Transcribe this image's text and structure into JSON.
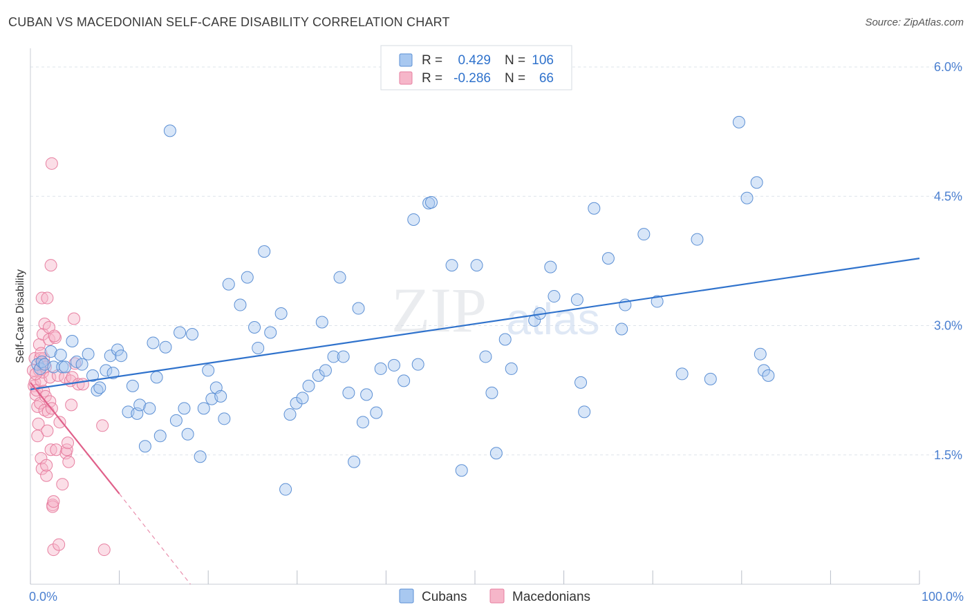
{
  "title": "CUBAN VS MACEDONIAN SELF-CARE DISABILITY CORRELATION CHART",
  "source": "Source: ZipAtlas.com",
  "watermark": {
    "main": "ZIP",
    "sub": "atlas"
  },
  "colors": {
    "cubans_fill": "#a8c8f0",
    "cubans_stroke": "#5b8fd4",
    "cubans_line": "#2f72cc",
    "macedonians_fill": "#f6b6c9",
    "macedonians_stroke": "#e77fa0",
    "macedonians_line": "#e0608a",
    "tick_label": "#4a7fd0",
    "grid": "#dde3ea"
  },
  "legend": {
    "rows": [
      {
        "r_label": "R =",
        "r_value": "0.429",
        "n_label": "N =",
        "n_value": "106"
      },
      {
        "r_label": "R =",
        "r_value": "-0.286",
        "n_label": "N =",
        "n_value": "66"
      }
    ]
  },
  "bottom_legend": {
    "cubans": "Cubans",
    "macedonians": "Macedonians"
  },
  "chart_data": {
    "type": "scatter",
    "ylabel": "Self-Care Disability",
    "xlabel": "",
    "x_tick_labels": [
      "0.0%",
      "100.0%"
    ],
    "y_tick_labels": [
      "1.5%",
      "3.0%",
      "4.5%",
      "6.0%"
    ],
    "y_ticks": [
      1.5,
      3.0,
      4.5,
      6.0
    ],
    "xlim": [
      0,
      100
    ],
    "ylim": [
      0,
      6.25
    ],
    "grid": true,
    "legend_position": "top-center",
    "series": [
      {
        "name": "Cubans",
        "trend": {
          "x0": 0,
          "y0": 2.26,
          "x1": 100,
          "y1": 3.78
        },
        "points": [
          [
            0.8,
            2.55
          ],
          [
            1.1,
            2.5
          ],
          [
            1.3,
            2.58
          ],
          [
            1.6,
            2.55
          ],
          [
            2.3,
            2.7
          ],
          [
            2.6,
            2.52
          ],
          [
            3.4,
            2.66
          ],
          [
            3.6,
            2.52
          ],
          [
            3.9,
            2.52
          ],
          [
            4.7,
            2.82
          ],
          [
            5.2,
            2.58
          ],
          [
            5.8,
            2.55
          ],
          [
            6.5,
            2.67
          ],
          [
            7.0,
            2.42
          ],
          [
            7.5,
            2.25
          ],
          [
            7.8,
            2.28
          ],
          [
            8.5,
            2.48
          ],
          [
            9.0,
            2.65
          ],
          [
            9.3,
            2.45
          ],
          [
            9.8,
            2.72
          ],
          [
            10.2,
            2.65
          ],
          [
            11.0,
            2.0
          ],
          [
            11.5,
            2.3
          ],
          [
            12.0,
            1.98
          ],
          [
            12.3,
            2.08
          ],
          [
            12.9,
            1.6
          ],
          [
            13.4,
            2.04
          ],
          [
            13.8,
            2.8
          ],
          [
            14.2,
            2.4
          ],
          [
            14.6,
            1.72
          ],
          [
            15.2,
            2.75
          ],
          [
            15.7,
            5.26
          ],
          [
            16.4,
            1.9
          ],
          [
            16.8,
            2.92
          ],
          [
            17.3,
            2.04
          ],
          [
            17.7,
            1.74
          ],
          [
            18.2,
            2.9
          ],
          [
            19.1,
            1.48
          ],
          [
            19.5,
            2.04
          ],
          [
            20.0,
            2.48
          ],
          [
            20.4,
            2.15
          ],
          [
            20.9,
            2.28
          ],
          [
            21.4,
            2.18
          ],
          [
            21.8,
            1.92
          ],
          [
            22.3,
            3.48
          ],
          [
            23.6,
            3.24
          ],
          [
            24.4,
            3.56
          ],
          [
            25.2,
            2.98
          ],
          [
            25.6,
            2.74
          ],
          [
            26.3,
            3.86
          ],
          [
            27.0,
            2.92
          ],
          [
            28.2,
            3.14
          ],
          [
            28.7,
            1.1
          ],
          [
            29.2,
            1.97
          ],
          [
            29.9,
            2.1
          ],
          [
            30.6,
            2.16
          ],
          [
            31.3,
            2.3
          ],
          [
            32.4,
            2.42
          ],
          [
            32.8,
            3.04
          ],
          [
            33.2,
            2.48
          ],
          [
            34.1,
            2.64
          ],
          [
            34.8,
            3.56
          ],
          [
            35.2,
            2.64
          ],
          [
            35.8,
            2.22
          ],
          [
            36.4,
            1.42
          ],
          [
            36.9,
            3.2
          ],
          [
            37.4,
            1.88
          ],
          [
            37.8,
            2.2
          ],
          [
            38.9,
            1.99
          ],
          [
            39.4,
            2.5
          ],
          [
            40.9,
            2.54
          ],
          [
            42.0,
            2.36
          ],
          [
            43.1,
            4.23
          ],
          [
            43.6,
            2.55
          ],
          [
            44.8,
            4.42
          ],
          [
            45.1,
            4.43
          ],
          [
            47.4,
            3.7
          ],
          [
            48.5,
            1.32
          ],
          [
            50.2,
            3.7
          ],
          [
            51.2,
            2.64
          ],
          [
            51.9,
            2.22
          ],
          [
            52.4,
            1.52
          ],
          [
            53.4,
            2.84
          ],
          [
            54.1,
            2.5
          ],
          [
            56.7,
            3.06
          ],
          [
            57.3,
            3.14
          ],
          [
            58.5,
            3.68
          ],
          [
            58.9,
            3.34
          ],
          [
            61.5,
            3.3
          ],
          [
            61.9,
            2.34
          ],
          [
            62.3,
            2.0
          ],
          [
            63.4,
            4.36
          ],
          [
            65.0,
            3.78
          ],
          [
            66.5,
            2.96
          ],
          [
            66.9,
            3.24
          ],
          [
            69.0,
            4.06
          ],
          [
            70.5,
            3.28
          ],
          [
            73.3,
            2.44
          ],
          [
            75.0,
            4.0
          ],
          [
            76.5,
            2.38
          ],
          [
            79.7,
            5.36
          ],
          [
            80.6,
            4.48
          ],
          [
            81.7,
            4.66
          ],
          [
            82.1,
            2.67
          ],
          [
            82.5,
            2.48
          ],
          [
            83.0,
            2.42
          ]
        ]
      },
      {
        "name": "Macedonians",
        "trend": {
          "x0": 0,
          "y0": 2.34,
          "x1": 10,
          "y1": 1.05,
          "dash_x1": 18,
          "dash_y1": 0.0
        },
        "points": [
          [
            0.3,
            2.48
          ],
          [
            0.4,
            2.3
          ],
          [
            0.5,
            2.34
          ],
          [
            0.5,
            2.62
          ],
          [
            0.6,
            2.2
          ],
          [
            0.7,
            2.25
          ],
          [
            0.8,
            1.72
          ],
          [
            0.8,
            2.06
          ],
          [
            0.9,
            1.86
          ],
          [
            1.0,
            2.78
          ],
          [
            1.0,
            2.48
          ],
          [
            1.1,
            2.62
          ],
          [
            1.1,
            2.1
          ],
          [
            1.2,
            2.36
          ],
          [
            1.2,
            1.46
          ],
          [
            1.3,
            1.34
          ],
          [
            1.3,
            3.32
          ],
          [
            1.4,
            2.9
          ],
          [
            1.4,
            2.46
          ],
          [
            1.4,
            2.56
          ],
          [
            1.5,
            2.62
          ],
          [
            1.5,
            2.24
          ],
          [
            1.6,
            3.02
          ],
          [
            1.6,
            2.02
          ],
          [
            1.7,
            2.52
          ],
          [
            1.7,
            2.18
          ],
          [
            1.8,
            1.26
          ],
          [
            1.8,
            1.38
          ],
          [
            1.9,
            3.32
          ],
          [
            1.9,
            1.78
          ],
          [
            2.0,
            2.0
          ],
          [
            2.1,
            2.98
          ],
          [
            2.1,
            2.84
          ],
          [
            2.2,
            2.4
          ],
          [
            2.2,
            2.12
          ],
          [
            2.3,
            1.56
          ],
          [
            2.3,
            3.7
          ],
          [
            2.4,
            2.04
          ],
          [
            2.4,
            4.88
          ],
          [
            2.5,
            0.92
          ],
          [
            2.5,
            0.9
          ],
          [
            2.6,
            0.96
          ],
          [
            2.6,
            0.4
          ],
          [
            2.8,
            2.86
          ],
          [
            2.9,
            1.56
          ],
          [
            3.1,
            2.42
          ],
          [
            3.2,
            0.46
          ],
          [
            3.3,
            1.88
          ],
          [
            3.6,
            1.16
          ],
          [
            3.9,
            2.4
          ],
          [
            4.0,
            1.52
          ],
          [
            4.1,
            1.56
          ],
          [
            4.2,
            1.64
          ],
          [
            4.3,
            1.42
          ],
          [
            4.5,
            2.36
          ],
          [
            4.6,
            2.08
          ],
          [
            4.7,
            2.4
          ],
          [
            4.9,
            3.08
          ],
          [
            5.0,
            2.56
          ],
          [
            5.4,
            2.32
          ],
          [
            5.9,
            2.32
          ],
          [
            8.1,
            1.84
          ],
          [
            8.3,
            0.4
          ],
          [
            2.7,
            2.88
          ],
          [
            1.2,
            2.68
          ],
          [
            0.6,
            2.44
          ]
        ]
      }
    ]
  }
}
